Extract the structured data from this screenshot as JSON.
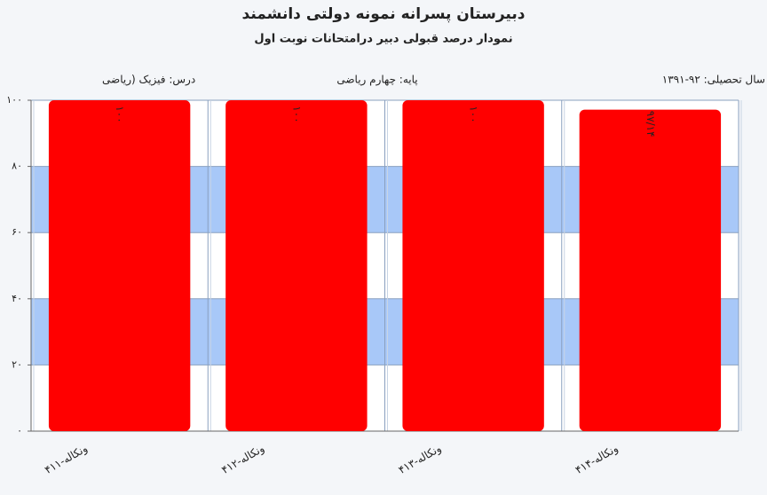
{
  "chart_data": {
    "type": "bar",
    "title": "دبیرستان پسرانه نمونه دولتی دانشمند",
    "subtitle": "نمودار درصد قبولی دبیر درامتحانات نوبت اول",
    "info": [
      "درس: فیزیک (ریاضی",
      "پایه: چهارم ریاضی",
      "سال تحصیلی: ۹۲-۱۳۹۱"
    ],
    "categories": [
      "ونکاله-۴۱۱",
      "ونکاله-۴۱۲",
      "ونکاله-۴۱۳",
      "ونکاله-۴۱۴"
    ],
    "values": [
      100,
      100,
      100,
      97.14
    ],
    "value_labels": [
      "۱۰۰",
      "۱۰۰",
      "۱۰۰",
      "۹۷/۱۴"
    ],
    "color": "#ff0000",
    "ylim": [
      0,
      100
    ],
    "yticks": [
      {
        "value": 0,
        "label": "۰"
      },
      {
        "value": 20,
        "label": "۲۰"
      },
      {
        "value": 40,
        "label": "۴۰"
      },
      {
        "value": 60,
        "label": "۶۰"
      },
      {
        "value": 80,
        "label": "۸۰"
      },
      {
        "value": 100,
        "label": "۱۰۰"
      }
    ],
    "grid": true
  }
}
